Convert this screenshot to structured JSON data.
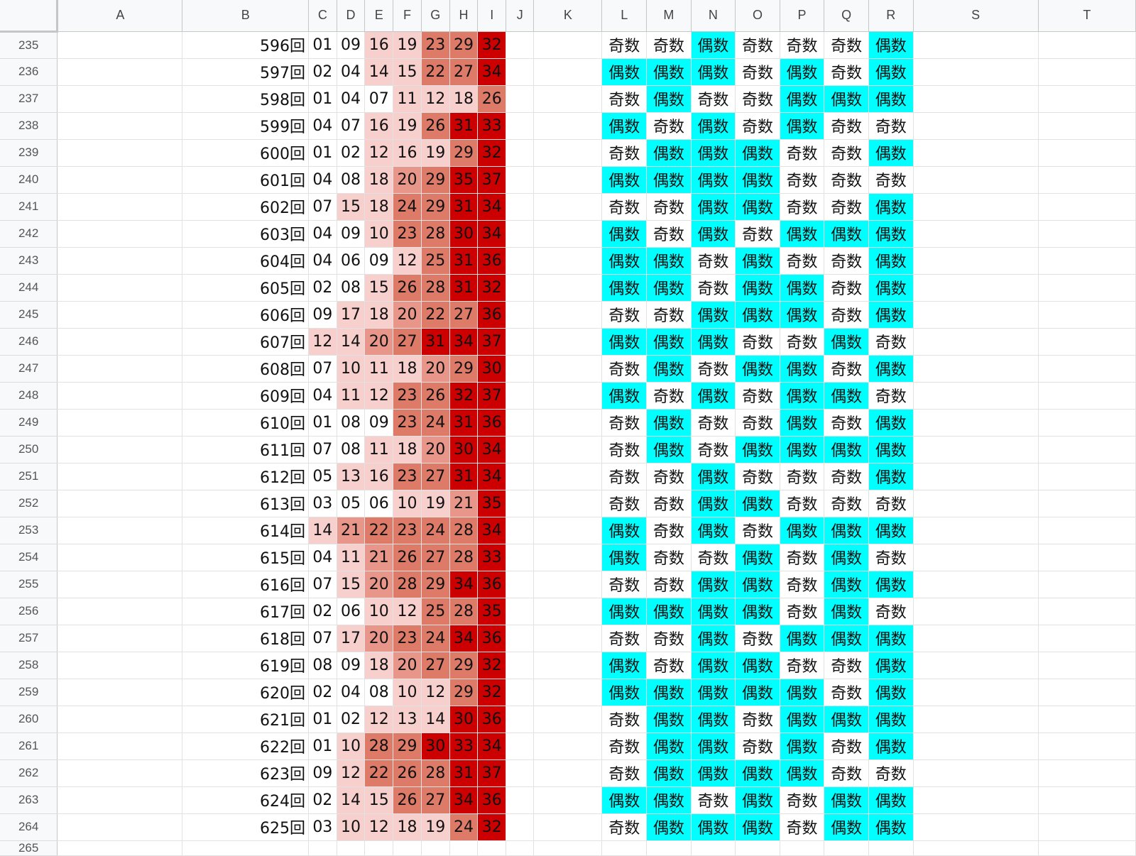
{
  "colors": {
    "even_bg": "#00ffff",
    "odd_bg": "#ffffff",
    "heat_scale": [
      "#ffffff",
      "#f7d0ce",
      "#e8968a",
      "#dd7a68",
      "#cc0000"
    ]
  },
  "columns": [
    "A",
    "B",
    "C",
    "D",
    "E",
    "F",
    "G",
    "H",
    "I",
    "J",
    "K",
    "L",
    "M",
    "N",
    "O",
    "P",
    "Q",
    "R",
    "S",
    "T"
  ],
  "labels": {
    "even": "偶数",
    "odd": "奇数"
  },
  "rows": [
    {
      "row": "235",
      "draw": "596回",
      "nums": [
        "01",
        "09",
        "16",
        "19",
        "23",
        "29",
        "32"
      ],
      "parity": [
        "奇数",
        "奇数",
        "偶数",
        "奇数",
        "奇数",
        "奇数",
        "偶数"
      ]
    },
    {
      "row": "236",
      "draw": "597回",
      "nums": [
        "02",
        "04",
        "14",
        "15",
        "22",
        "27",
        "34"
      ],
      "parity": [
        "偶数",
        "偶数",
        "偶数",
        "奇数",
        "偶数",
        "奇数",
        "偶数"
      ]
    },
    {
      "row": "237",
      "draw": "598回",
      "nums": [
        "01",
        "04",
        "07",
        "11",
        "12",
        "18",
        "26"
      ],
      "parity": [
        "奇数",
        "偶数",
        "奇数",
        "奇数",
        "偶数",
        "偶数",
        "偶数"
      ]
    },
    {
      "row": "238",
      "draw": "599回",
      "nums": [
        "04",
        "07",
        "16",
        "19",
        "26",
        "31",
        "33"
      ],
      "parity": [
        "偶数",
        "奇数",
        "偶数",
        "奇数",
        "偶数",
        "奇数",
        "奇数"
      ]
    },
    {
      "row": "239",
      "draw": "600回",
      "nums": [
        "01",
        "02",
        "12",
        "16",
        "19",
        "29",
        "32"
      ],
      "parity": [
        "奇数",
        "偶数",
        "偶数",
        "偶数",
        "奇数",
        "奇数",
        "偶数"
      ]
    },
    {
      "row": "240",
      "draw": "601回",
      "nums": [
        "04",
        "08",
        "18",
        "20",
        "29",
        "35",
        "37"
      ],
      "parity": [
        "偶数",
        "偶数",
        "偶数",
        "偶数",
        "奇数",
        "奇数",
        "奇数"
      ]
    },
    {
      "row": "241",
      "draw": "602回",
      "nums": [
        "07",
        "15",
        "18",
        "24",
        "29",
        "31",
        "34"
      ],
      "parity": [
        "奇数",
        "奇数",
        "偶数",
        "偶数",
        "奇数",
        "奇数",
        "偶数"
      ]
    },
    {
      "row": "242",
      "draw": "603回",
      "nums": [
        "04",
        "09",
        "10",
        "23",
        "28",
        "30",
        "34"
      ],
      "parity": [
        "偶数",
        "奇数",
        "偶数",
        "奇数",
        "偶数",
        "偶数",
        "偶数"
      ]
    },
    {
      "row": "243",
      "draw": "604回",
      "nums": [
        "04",
        "06",
        "09",
        "12",
        "25",
        "31",
        "36"
      ],
      "parity": [
        "偶数",
        "偶数",
        "奇数",
        "偶数",
        "奇数",
        "奇数",
        "偶数"
      ]
    },
    {
      "row": "244",
      "draw": "605回",
      "nums": [
        "02",
        "08",
        "15",
        "26",
        "28",
        "31",
        "32"
      ],
      "parity": [
        "偶数",
        "偶数",
        "奇数",
        "偶数",
        "偶数",
        "奇数",
        "偶数"
      ]
    },
    {
      "row": "245",
      "draw": "606回",
      "nums": [
        "09",
        "17",
        "18",
        "20",
        "22",
        "27",
        "36"
      ],
      "parity": [
        "奇数",
        "奇数",
        "偶数",
        "偶数",
        "偶数",
        "奇数",
        "偶数"
      ]
    },
    {
      "row": "246",
      "draw": "607回",
      "nums": [
        "12",
        "14",
        "20",
        "27",
        "31",
        "34",
        "37"
      ],
      "parity": [
        "偶数",
        "偶数",
        "偶数",
        "奇数",
        "奇数",
        "偶数",
        "奇数"
      ]
    },
    {
      "row": "247",
      "draw": "608回",
      "nums": [
        "07",
        "10",
        "11",
        "18",
        "20",
        "29",
        "30"
      ],
      "parity": [
        "奇数",
        "偶数",
        "奇数",
        "偶数",
        "偶数",
        "奇数",
        "偶数"
      ]
    },
    {
      "row": "248",
      "draw": "609回",
      "nums": [
        "04",
        "11",
        "12",
        "23",
        "26",
        "32",
        "37"
      ],
      "parity": [
        "偶数",
        "奇数",
        "偶数",
        "奇数",
        "偶数",
        "偶数",
        "奇数"
      ]
    },
    {
      "row": "249",
      "draw": "610回",
      "nums": [
        "01",
        "08",
        "09",
        "23",
        "24",
        "31",
        "36"
      ],
      "parity": [
        "奇数",
        "偶数",
        "奇数",
        "奇数",
        "偶数",
        "奇数",
        "偶数"
      ]
    },
    {
      "row": "250",
      "draw": "611回",
      "nums": [
        "07",
        "08",
        "11",
        "18",
        "20",
        "30",
        "34"
      ],
      "parity": [
        "奇数",
        "偶数",
        "奇数",
        "偶数",
        "偶数",
        "偶数",
        "偶数"
      ]
    },
    {
      "row": "251",
      "draw": "612回",
      "nums": [
        "05",
        "13",
        "16",
        "23",
        "27",
        "31",
        "34"
      ],
      "parity": [
        "奇数",
        "奇数",
        "偶数",
        "奇数",
        "奇数",
        "奇数",
        "偶数"
      ]
    },
    {
      "row": "252",
      "draw": "613回",
      "nums": [
        "03",
        "05",
        "06",
        "10",
        "19",
        "21",
        "35"
      ],
      "parity": [
        "奇数",
        "奇数",
        "偶数",
        "偶数",
        "奇数",
        "奇数",
        "奇数"
      ]
    },
    {
      "row": "253",
      "draw": "614回",
      "nums": [
        "14",
        "21",
        "22",
        "23",
        "24",
        "28",
        "34"
      ],
      "parity": [
        "偶数",
        "奇数",
        "偶数",
        "奇数",
        "偶数",
        "偶数",
        "偶数"
      ]
    },
    {
      "row": "254",
      "draw": "615回",
      "nums": [
        "04",
        "11",
        "21",
        "26",
        "27",
        "28",
        "33"
      ],
      "parity": [
        "偶数",
        "奇数",
        "奇数",
        "偶数",
        "奇数",
        "偶数",
        "奇数"
      ]
    },
    {
      "row": "255",
      "draw": "616回",
      "nums": [
        "07",
        "15",
        "20",
        "28",
        "29",
        "34",
        "36"
      ],
      "parity": [
        "奇数",
        "奇数",
        "偶数",
        "偶数",
        "奇数",
        "偶数",
        "偶数"
      ]
    },
    {
      "row": "256",
      "draw": "617回",
      "nums": [
        "02",
        "06",
        "10",
        "12",
        "25",
        "28",
        "35"
      ],
      "parity": [
        "偶数",
        "偶数",
        "偶数",
        "偶数",
        "奇数",
        "偶数",
        "奇数"
      ]
    },
    {
      "row": "257",
      "draw": "618回",
      "nums": [
        "07",
        "17",
        "20",
        "23",
        "24",
        "34",
        "36"
      ],
      "parity": [
        "奇数",
        "奇数",
        "偶数",
        "奇数",
        "偶数",
        "偶数",
        "偶数"
      ]
    },
    {
      "row": "258",
      "draw": "619回",
      "nums": [
        "08",
        "09",
        "18",
        "20",
        "27",
        "29",
        "32"
      ],
      "parity": [
        "偶数",
        "奇数",
        "偶数",
        "偶数",
        "奇数",
        "奇数",
        "偶数"
      ]
    },
    {
      "row": "259",
      "draw": "620回",
      "nums": [
        "02",
        "04",
        "08",
        "10",
        "12",
        "29",
        "32"
      ],
      "parity": [
        "偶数",
        "偶数",
        "偶数",
        "偶数",
        "偶数",
        "奇数",
        "偶数"
      ]
    },
    {
      "row": "260",
      "draw": "621回",
      "nums": [
        "01",
        "02",
        "12",
        "13",
        "14",
        "30",
        "36"
      ],
      "parity": [
        "奇数",
        "偶数",
        "偶数",
        "奇数",
        "偶数",
        "偶数",
        "偶数"
      ]
    },
    {
      "row": "261",
      "draw": "622回",
      "nums": [
        "01",
        "10",
        "28",
        "29",
        "30",
        "33",
        "34"
      ],
      "parity": [
        "奇数",
        "偶数",
        "偶数",
        "奇数",
        "偶数",
        "奇数",
        "偶数"
      ]
    },
    {
      "row": "262",
      "draw": "623回",
      "nums": [
        "09",
        "12",
        "22",
        "26",
        "28",
        "31",
        "37"
      ],
      "parity": [
        "奇数",
        "偶数",
        "偶数",
        "偶数",
        "偶数",
        "奇数",
        "奇数"
      ]
    },
    {
      "row": "263",
      "draw": "624回",
      "nums": [
        "02",
        "14",
        "15",
        "26",
        "27",
        "34",
        "36"
      ],
      "parity": [
        "偶数",
        "偶数",
        "奇数",
        "偶数",
        "奇数",
        "偶数",
        "偶数"
      ]
    },
    {
      "row": "264",
      "draw": "625回",
      "nums": [
        "03",
        "10",
        "12",
        "18",
        "19",
        "24",
        "32"
      ],
      "parity": [
        "奇数",
        "偶数",
        "偶数",
        "偶数",
        "奇数",
        "偶数",
        "偶数"
      ]
    }
  ],
  "partial_row": {
    "row": "265"
  }
}
